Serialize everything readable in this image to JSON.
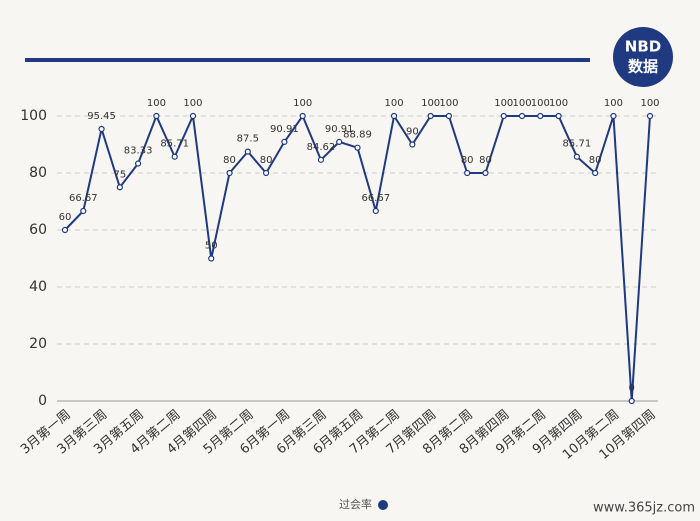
{
  "logo": {
    "line1": "NBD",
    "line2": "数据"
  },
  "watermark": "www.365jz.com",
  "chart_data": {
    "type": "line",
    "categories": [
      "3月第一周",
      null,
      "3月第三周",
      null,
      "3月第五周",
      null,
      "4月第二周",
      null,
      "4月第四周",
      null,
      "5月第二周",
      null,
      "6月第一周",
      null,
      "6月第三周",
      null,
      "6月第五周",
      null,
      "7月第二周",
      null,
      "7月第四周",
      null,
      "8月第二周",
      null,
      "8月第四周",
      null,
      "9月第二周",
      null,
      "9月第四周",
      null,
      "10月第二周",
      null,
      "10月第四周"
    ],
    "series": [
      {
        "name": "过会率",
        "color": "#1f3a80",
        "values": [
          60,
          66.67,
          95.45,
          75,
          83.33,
          100,
          85.71,
          100,
          50,
          80,
          87.5,
          80,
          90.91,
          100,
          84.62,
          90.91,
          88.89,
          66.67,
          100,
          90,
          100,
          100,
          80,
          80,
          100,
          100,
          100,
          100,
          85.71,
          80,
          100,
          0,
          100
        ]
      }
    ],
    "ylim": [
      0,
      100
    ],
    "yticks": [
      0,
      20,
      40,
      60,
      80,
      100
    ],
    "grid": true
  }
}
